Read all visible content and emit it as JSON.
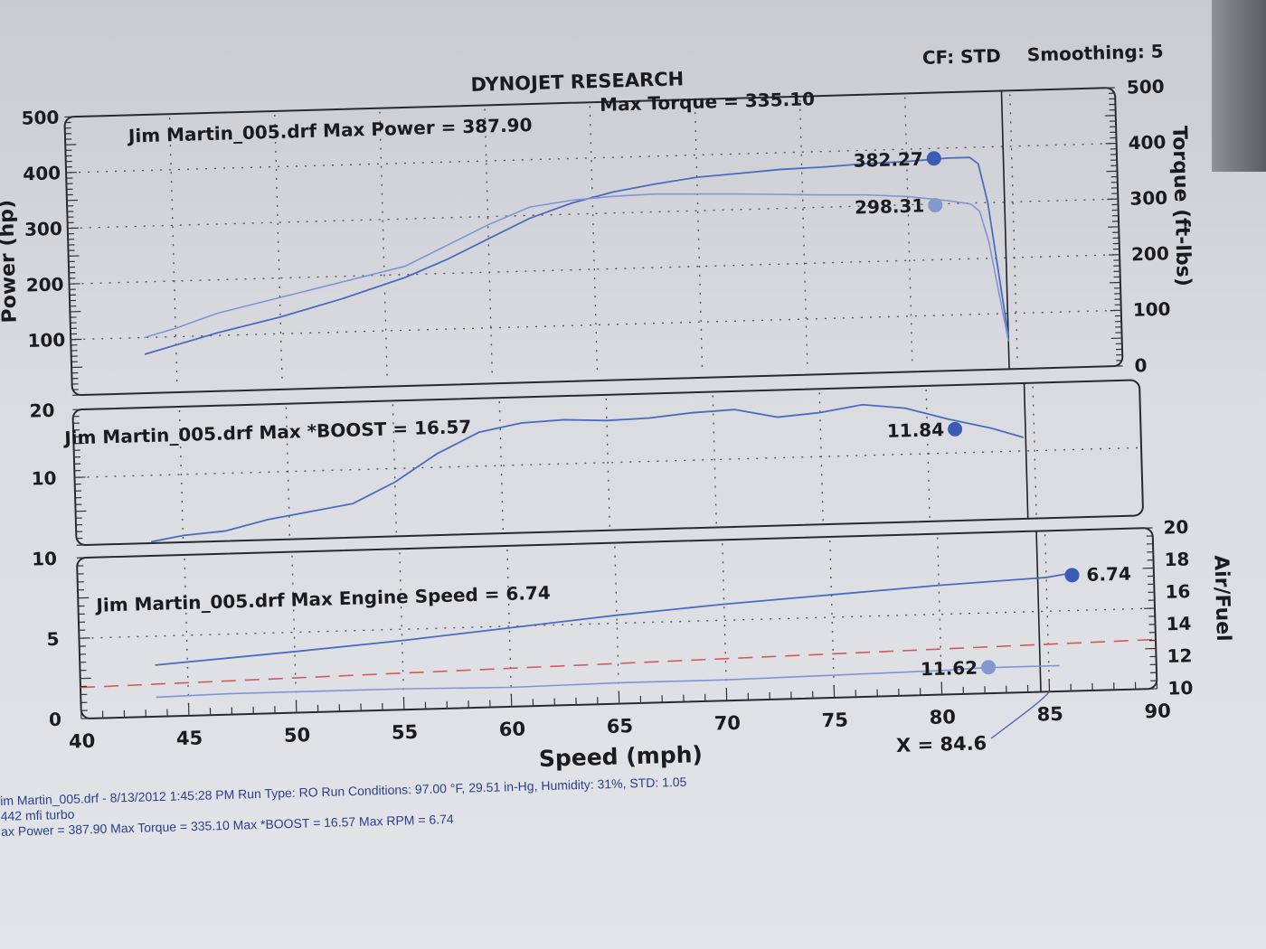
{
  "header": {
    "title": "DYNOJET RESEARCH",
    "cf": "CF: STD",
    "smoothing": "Smoothing: 5"
  },
  "colors": {
    "curve": "#4a6cc0",
    "curve_light": "#7f96d6",
    "dot_dark": "#3b5cb4",
    "dot_light": "#8498cf",
    "afr_ref": "#d05a5a"
  },
  "chart_data": [
    {
      "type": "line",
      "panel": "power-torque",
      "title": "Jim Martin_005.drf Max Power = 387.90",
      "title2": "Max Torque = 335.10",
      "xlabel": "Speed (mph)",
      "ylabel_left": "Power (hp)",
      "ylabel_right": "Torque (ft-lbs)",
      "xlim": [
        40,
        90
      ],
      "ylim_left": [
        0,
        500
      ],
      "ylim_right": [
        0,
        500
      ],
      "yticks_left": [
        "500",
        "400",
        "300",
        "200",
        "100"
      ],
      "yticks_right": [
        "500",
        "400",
        "300",
        "200",
        "100",
        "0"
      ],
      "cursor_x": 84.6,
      "series": [
        {
          "name": "Power",
          "axis": "left",
          "endpoint_label": "382.27",
          "x": [
            43.5,
            45,
            47,
            50,
            53,
            56,
            58,
            60,
            62,
            64,
            66,
            68,
            70,
            72,
            74,
            76,
            78,
            80,
            82,
            83,
            83.4,
            83.8,
            84.2,
            84.6
          ],
          "y": [
            70,
            85,
            105,
            130,
            160,
            195,
            225,
            260,
            295,
            320,
            338,
            350,
            360,
            365,
            370,
            372,
            376,
            378,
            382,
            382,
            370,
            300,
            180,
            60
          ]
        },
        {
          "name": "Torque",
          "axis": "right",
          "endpoint_label": "298.31",
          "x": [
            43.5,
            45,
            47,
            50,
            53,
            56,
            58,
            60,
            62,
            64,
            66,
            68,
            70,
            72,
            74,
            76,
            78,
            80,
            82,
            83,
            83.4,
            83.8,
            84.2,
            84.6
          ],
          "y": [
            100,
            115,
            140,
            165,
            190,
            215,
            250,
            285,
            315,
            325,
            330,
            332,
            330,
            328,
            325,
            322,
            320,
            315,
            305,
            298,
            285,
            230,
            140,
            50
          ]
        }
      ]
    },
    {
      "type": "line",
      "panel": "boost",
      "title": "Jim Martin_005.drf Max *BOOST = 16.57",
      "xlim": [
        40,
        90
      ],
      "ylim": [
        0,
        20
      ],
      "yticks": [
        "20",
        "10"
      ],
      "series": [
        {
          "name": "*BOOST",
          "endpoint_label": "11.84",
          "x": [
            43.5,
            45,
            47,
            49,
            51,
            53,
            55,
            57,
            59,
            61,
            63,
            65,
            67,
            69,
            71,
            73,
            75,
            77,
            79,
            81,
            83,
            84.5
          ],
          "y": [
            0.2,
            1,
            1.5,
            3,
            4,
            5,
            8,
            12,
            15,
            16.2,
            16.5,
            16.2,
            16.4,
            17,
            17.3,
            16,
            16.5,
            17.5,
            16.8,
            15,
            13.5,
            12
          ]
        }
      ]
    },
    {
      "type": "line",
      "panel": "engine-speed-airfuel",
      "title": "Jim Martin_005.drf Max Engine Speed = 6.74",
      "xlim": [
        40,
        90
      ],
      "ylim_left": [
        0,
        10
      ],
      "ylim_right": [
        10,
        20
      ],
      "yticks_left": [
        "10",
        "5",
        "0"
      ],
      "yticks_right": [
        "20",
        "18",
        "16",
        "14",
        "12",
        "10"
      ],
      "ylabel_right": "Air/Fuel",
      "xticks": [
        "40",
        "45",
        "50",
        "55",
        "60",
        "65",
        "70",
        "75",
        "80",
        "85",
        "90"
      ],
      "cursor_label": "X = 84.6",
      "reference_line": {
        "axis": "right",
        "value": 12.5
      },
      "series": [
        {
          "name": "Engine Speed",
          "axis": "left",
          "endpoint_label": "6.74",
          "x": [
            43.5,
            50,
            55,
            60,
            65,
            70,
            75,
            80,
            85,
            86
          ],
          "y": [
            3.2,
            3.8,
            4.3,
            4.9,
            5.5,
            6.0,
            6.4,
            6.8,
            7.1,
            7.3
          ]
        },
        {
          "name": "Air/Fuel",
          "axis": "right",
          "endpoint_label": "11.62",
          "x": [
            43.5,
            47,
            50,
            55,
            60,
            65,
            70,
            75,
            80,
            82,
            84,
            85.5
          ],
          "y": [
            11.2,
            11.3,
            11.3,
            11.3,
            11.2,
            11.3,
            11.3,
            11.4,
            11.5,
            11.6,
            11.6,
            11.6
          ]
        }
      ]
    }
  ],
  "footer": {
    "line1": "im Martin_005.drf - 8/13/2012 1:45:28 PM  Run Type: RO  Run Conditions: 97.00 °F, 29.51 in-Hg,  Humidity:  31%, STD: 1.05",
    "line2": "442 mfi turbo",
    "line3": "ax Power = 387.90  Max Torque = 335.10  Max *BOOST = 16.57  Max RPM = 6.74"
  }
}
